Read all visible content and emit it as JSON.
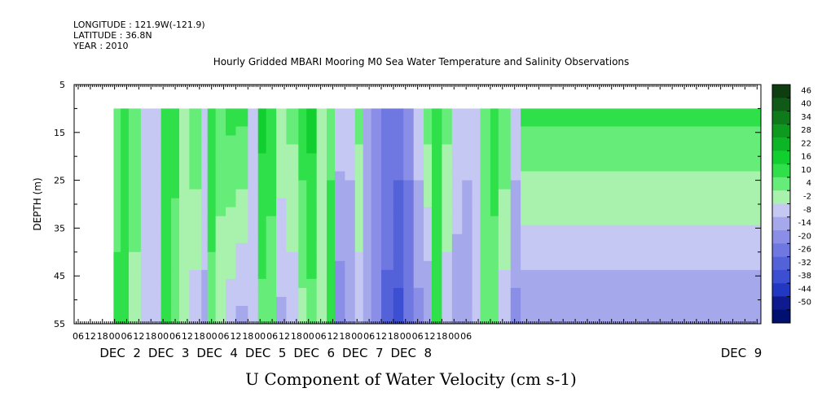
{
  "meta": {
    "longitude": "LONGITUDE : 121.9W(-121.9)",
    "latitude": "LATITUDE : 36.8N",
    "year": "YEAR : 2010"
  },
  "chart_data": {
    "type": "heatmap",
    "title": "Hourly Gridded MBARI Mooring M0 Sea Water Temperature and Salinity Observations",
    "xlabel": "U Component of Water Velocity (cm s-1)",
    "ylabel": "DEPTH (m)",
    "ylim": [
      55,
      5
    ],
    "data_depth_range": [
      10,
      55
    ],
    "y_ticks": [
      "5",
      "15",
      "25",
      "35",
      "45",
      "55"
    ],
    "x_hour_ticks": [
      "06",
      "12",
      "18",
      "00",
      "06",
      "12",
      "18",
      "00",
      "06",
      "12",
      "18",
      "00",
      "06",
      "12",
      "18",
      "00",
      "06",
      "12",
      "18",
      "00",
      "06",
      "12",
      "18",
      "00",
      "06",
      "12",
      "18",
      "00",
      "06",
      "12",
      "18",
      "00",
      "06"
    ],
    "x_day_labels": [
      "DEC  2",
      "DEC  3",
      "DEC  4",
      "DEC  5",
      "DEC  6",
      "DEC  7",
      "DEC  8",
      "DEC  9"
    ],
    "colorbar": {
      "labels": [
        "46",
        "40",
        "34",
        "28",
        "22",
        "16",
        "10",
        "4",
        "-2",
        "-8",
        "-14",
        "-20",
        "-26",
        "-32",
        "-38",
        "-44",
        "-50"
      ],
      "colors": [
        "#0e3d12",
        "#0f5a16",
        "#0e7a1a",
        "#0d9a1f",
        "#0bb526",
        "#10cf2e",
        "#2fe04a",
        "#66ec78",
        "#a8f2ad",
        "#c6c8f4",
        "#a6a8ec",
        "#8a8ee6",
        "#6e78e0",
        "#5462da",
        "#3c4ed2",
        "#2238c2",
        "#0e1a8e",
        "#001070"
      ]
    },
    "columns_u_cm_s": [
      {
        "x_hours_from_dec1_1200": 11.5,
        "u_surface": 6,
        "u_bottom": 12
      },
      {
        "x_hours_from_dec1_1200": 15,
        "u_surface": 16,
        "u_bottom": 14
      },
      {
        "x_hours_from_dec1_1200": 19,
        "u_surface": 8,
        "u_bottom": 2
      },
      {
        "x_hours_from_dec1_1200": 25,
        "u_surface": -4,
        "u_bottom": -8
      },
      {
        "x_hours_from_dec1_1200": 30,
        "u_surface": -2,
        "u_bottom": -4
      },
      {
        "x_hours_from_dec1_1200": 35,
        "u_surface": 16,
        "u_bottom": 14
      },
      {
        "x_hours_from_dec1_1200": 40,
        "u_surface": 14,
        "u_bottom": 4
      },
      {
        "x_hours_from_dec1_1200": 44,
        "u_surface": -2,
        "u_bottom": 2
      },
      {
        "x_hours_from_dec1_1200": 49,
        "u_surface": 10,
        "u_bottom": -6
      },
      {
        "x_hours_from_dec1_1200": 55,
        "u_surface": -2,
        "u_bottom": -10
      },
      {
        "x_hours_from_dec1_1200": 58,
        "u_surface": 14,
        "u_bottom": 8
      },
      {
        "x_hours_from_dec1_1200": 62,
        "u_surface": 8,
        "u_bottom": 0
      },
      {
        "x_hours_from_dec1_1200": 67,
        "u_surface": 12,
        "u_bottom": -6
      },
      {
        "x_hours_from_dec1_1200": 72,
        "u_surface": 12,
        "u_bottom": -10
      },
      {
        "x_hours_from_dec1_1200": 78,
        "u_surface": -2,
        "u_bottom": -6
      },
      {
        "x_hours_from_dec1_1200": 83,
        "u_surface": 18,
        "u_bottom": 8
      },
      {
        "x_hours_from_dec1_1200": 87,
        "u_surface": 16,
        "u_bottom": 4
      },
      {
        "x_hours_from_dec1_1200": 92,
        "u_surface": 4,
        "u_bottom": -10
      },
      {
        "x_hours_from_dec1_1200": 97,
        "u_surface": 6,
        "u_bottom": -6
      },
      {
        "x_hours_from_dec1_1200": 103,
        "u_surface": 14,
        "u_bottom": 2
      },
      {
        "x_hours_from_dec1_1200": 107,
        "u_surface": 18,
        "u_bottom": 8
      },
      {
        "x_hours_from_dec1_1200": 112,
        "u_surface": 4,
        "u_bottom": 0
      },
      {
        "x_hours_from_dec1_1200": 117,
        "u_surface": 8,
        "u_bottom": 14
      },
      {
        "x_hours_from_dec1_1200": 121,
        "u_surface": -4,
        "u_bottom": -18
      },
      {
        "x_hours_from_dec1_1200": 126,
        "u_surface": -6,
        "u_bottom": -12
      },
      {
        "x_hours_from_dec1_1200": 131,
        "u_surface": 6,
        "u_bottom": -6
      },
      {
        "x_hours_from_dec1_1200": 135,
        "u_surface": -14,
        "u_bottom": -8
      },
      {
        "x_hours_from_dec1_1200": 139,
        "u_surface": -18,
        "u_bottom": -18
      },
      {
        "x_hours_from_dec1_1200": 144,
        "u_surface": -20,
        "u_bottom": -28
      },
      {
        "x_hours_from_dec1_1200": 150,
        "u_surface": -22,
        "u_bottom": -34
      },
      {
        "x_hours_from_dec1_1200": 155,
        "u_surface": -18,
        "u_bottom": -24
      },
      {
        "x_hours_from_dec1_1200": 160,
        "u_surface": -4,
        "u_bottom": -16
      },
      {
        "x_hours_from_dec1_1200": 165,
        "u_surface": 8,
        "u_bottom": -14
      },
      {
        "x_hours_from_dec1_1200": 169,
        "u_surface": 12,
        "u_bottom": 16
      },
      {
        "x_hours_from_dec1_1200": 174,
        "u_surface": 6,
        "u_bottom": -6
      },
      {
        "x_hours_from_dec1_1200": 179,
        "u_surface": -2,
        "u_bottom": -12
      },
      {
        "x_hours_from_dec1_1200": 184,
        "u_surface": -6,
        "u_bottom": -12
      },
      {
        "x_hours_from_dec1_1200": 189,
        "u_surface": -4,
        "u_bottom": -8
      },
      {
        "x_hours_from_dec1_1200": 193,
        "u_surface": 10,
        "u_bottom": 4
      },
      {
        "x_hours_from_dec1_1200": 198,
        "u_surface": 14,
        "u_bottom": 6
      },
      {
        "x_hours_from_dec1_1200": 202,
        "u_surface": 10,
        "u_bottom": -6
      },
      {
        "x_hours_from_dec1_1200": 208,
        "u_surface": -4,
        "u_bottom": -16
      },
      {
        "x_hours_from_dec1_1200": 213,
        "u_surface": 12,
        "u_bottom": -14
      }
    ]
  }
}
